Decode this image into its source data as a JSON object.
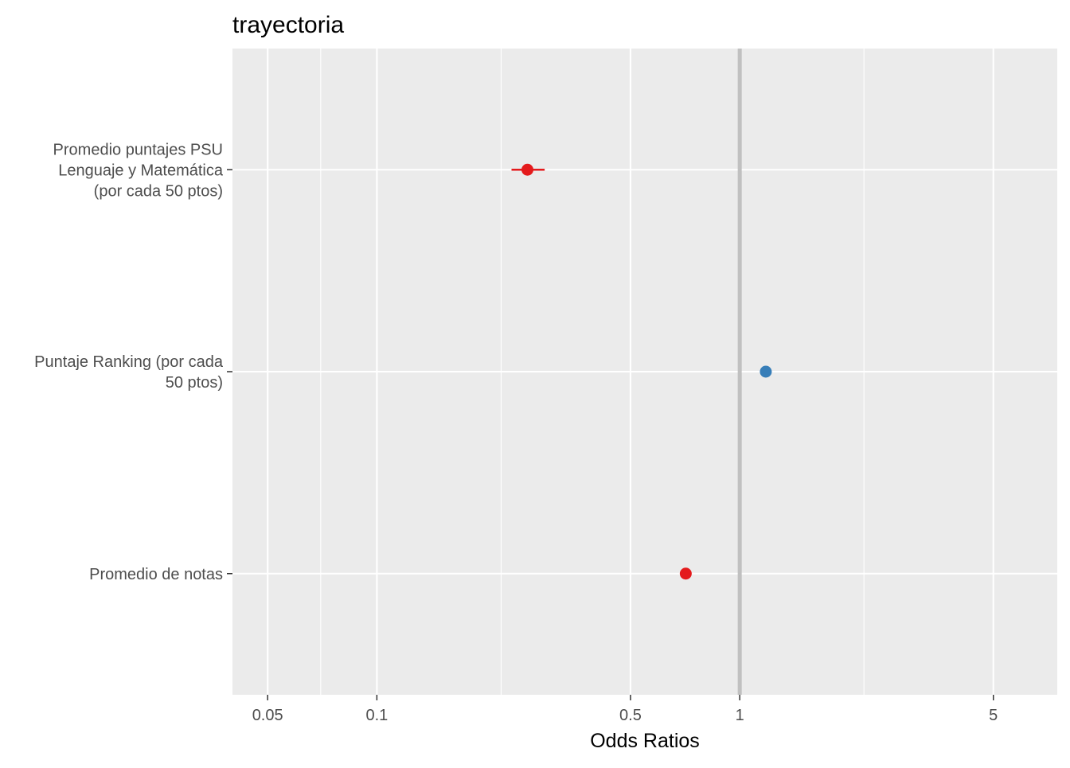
{
  "chart_data": {
    "type": "scatter",
    "title": "trayectoria",
    "xlabel": "Odds Ratios",
    "ylabel": "",
    "x_scale": "log10",
    "xlim": [
      0.04,
      7.5
    ],
    "x_ticks_major": [
      {
        "value": 0.05,
        "label": "0.05"
      },
      {
        "value": 0.1,
        "label": "0.1"
      },
      {
        "value": 0.5,
        "label": "0.5"
      },
      {
        "value": 1,
        "label": "1"
      },
      {
        "value": 5,
        "label": "5"
      }
    ],
    "x_ticks_minor": [
      0.07,
      0.22,
      2.2
    ],
    "reference_line": 1,
    "grid": true,
    "colors": {
      "negative": "#e41a1c",
      "positive": "#377eb8",
      "panel_bg": "#ebebeb",
      "grid": "#ffffff",
      "reference": "#c0c0c0"
    },
    "points": [
      {
        "label": [
          "Promedio puntajes PSU",
          "Lenguaje y Matemática",
          "(por cada 50 ptos)"
        ],
        "or": 0.26,
        "ci_low": 0.235,
        "ci_high": 0.29,
        "color": "negative"
      },
      {
        "label": [
          "Puntaje Ranking (por cada",
          "50 ptos)"
        ],
        "or": 1.18,
        "ci_low": 1.16,
        "ci_high": 1.2,
        "color": "positive"
      },
      {
        "label": [
          "Promedio de notas"
        ],
        "or": 0.71,
        "ci_low": 0.7,
        "ci_high": 0.72,
        "color": "negative"
      }
    ]
  }
}
